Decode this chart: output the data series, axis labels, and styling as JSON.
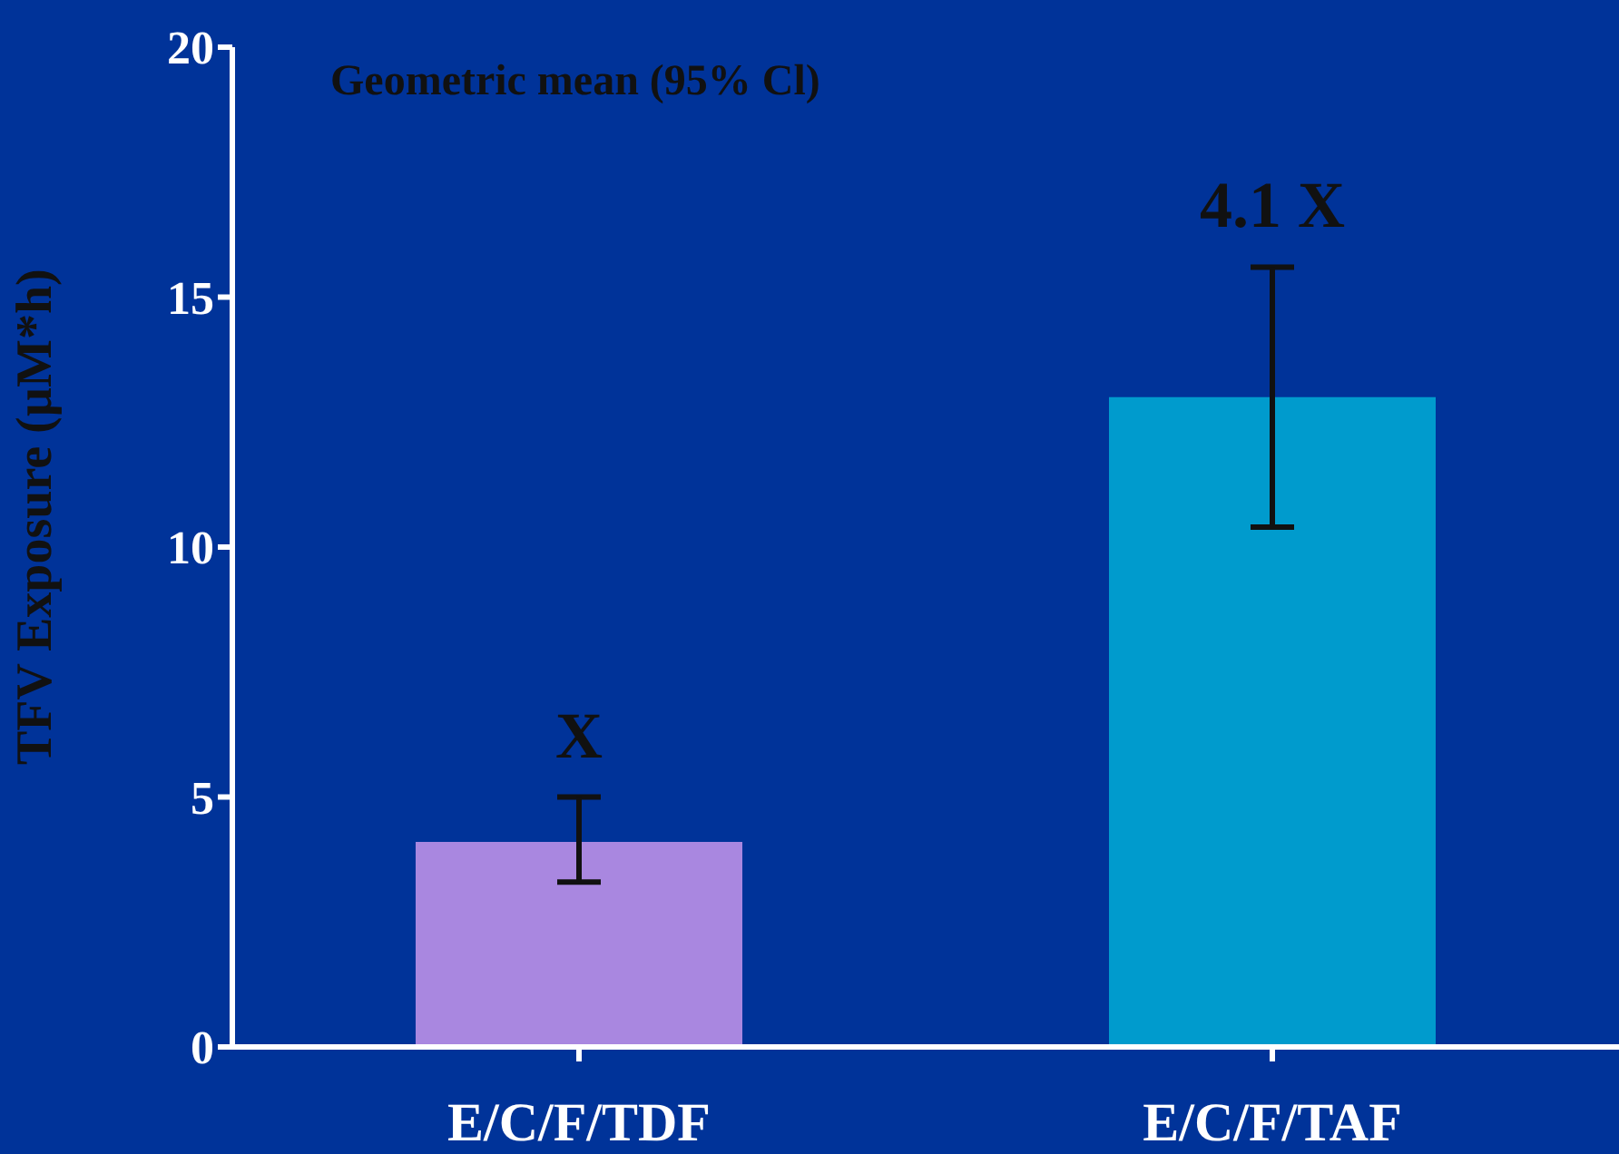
{
  "chart_data": {
    "type": "bar",
    "ylabel": "TFV Exposure (µM*h)",
    "categories": [
      "E/C/F/TDF",
      "E/C/F/TAF"
    ],
    "values": [
      4.1,
      13.0
    ],
    "colors": [
      "#a987e0",
      "#009bcd"
    ],
    "errors": [
      [
        3.3,
        5.0
      ],
      [
        10.4,
        15.6
      ]
    ],
    "ylim": [
      0,
      20
    ],
    "yticks": [
      0,
      5,
      10,
      15,
      20
    ],
    "grid": false,
    "legend": false,
    "annotations": [
      "Geometric mean (95% Cl)",
      "X",
      "4.1 X"
    ]
  }
}
